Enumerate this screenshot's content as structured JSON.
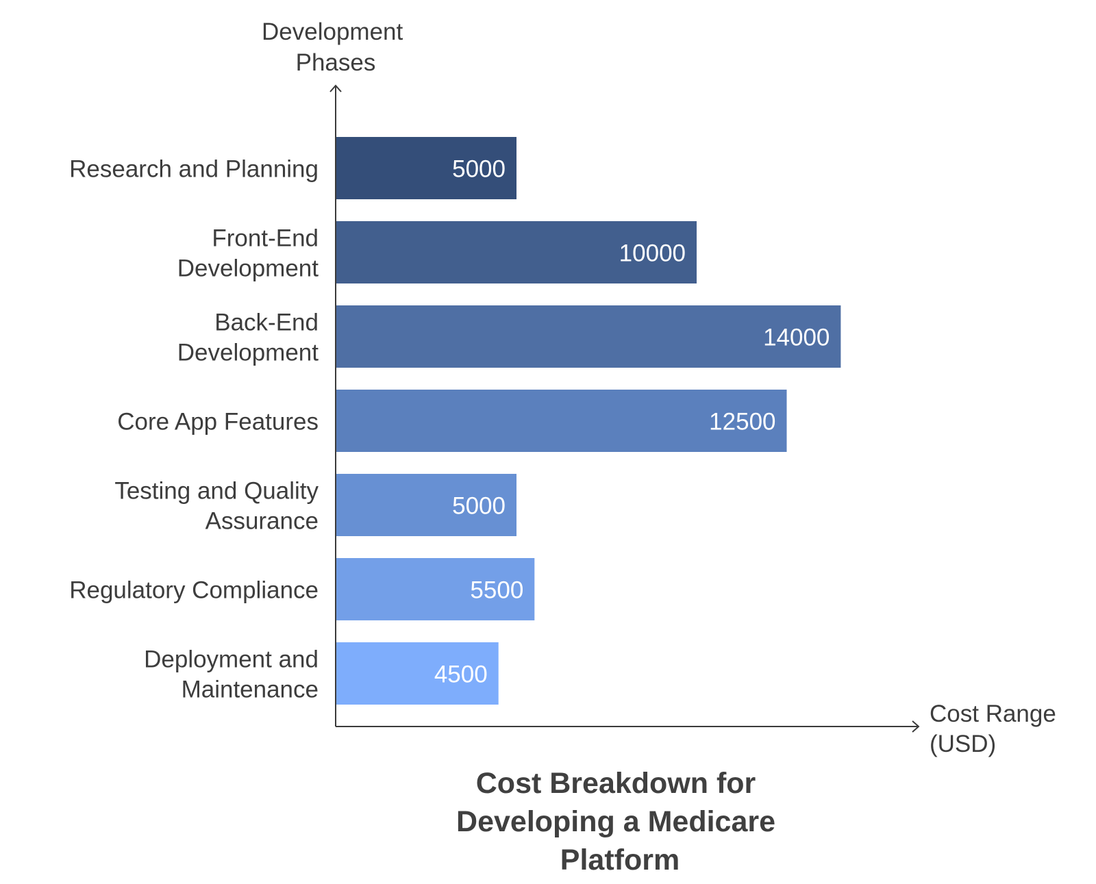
{
  "chart_data": {
    "type": "bar",
    "orientation": "horizontal",
    "title": "Cost Breakdown for Developing a Medicare Platform",
    "title_lines": [
      "Cost Breakdown for",
      "Developing a Medicare",
      "Platform"
    ],
    "xlabel": "Cost Range (USD)",
    "xlabel_lines": [
      "Cost Range",
      "(USD)"
    ],
    "ylabel": "Development Phases",
    "ylabel_lines": [
      "Development",
      "Phases"
    ],
    "categories": [
      "Research and Planning",
      "Front-End Development",
      "Back-End Development",
      "Core App Features",
      "Testing and Quality Assurance",
      "Regulatory Compliance",
      "Deployment and Maintenance"
    ],
    "category_lines": [
      [
        "Research and Planning"
      ],
      [
        "Front-End",
        "Development"
      ],
      [
        "Back-End",
        "Development"
      ],
      [
        "Core App Features"
      ],
      [
        "Testing and Quality",
        "Assurance"
      ],
      [
        "Regulatory Compliance"
      ],
      [
        "Deployment and",
        "Maintenance"
      ]
    ],
    "values": [
      5000,
      10000,
      14000,
      12500,
      5000,
      5500,
      4500
    ],
    "data_labels": [
      "5000",
      "10000",
      "14000",
      "12500",
      "5000",
      "5500",
      "4500"
    ],
    "bar_colors": [
      "#344e79",
      "#425f8e",
      "#4f6fa4",
      "#5b80bd",
      "#6790d3",
      "#739fe8",
      "#7eadfc"
    ],
    "xlim": [
      0,
      16000
    ],
    "grid": false,
    "legend": "none",
    "value_label_position": "inside-end"
  }
}
